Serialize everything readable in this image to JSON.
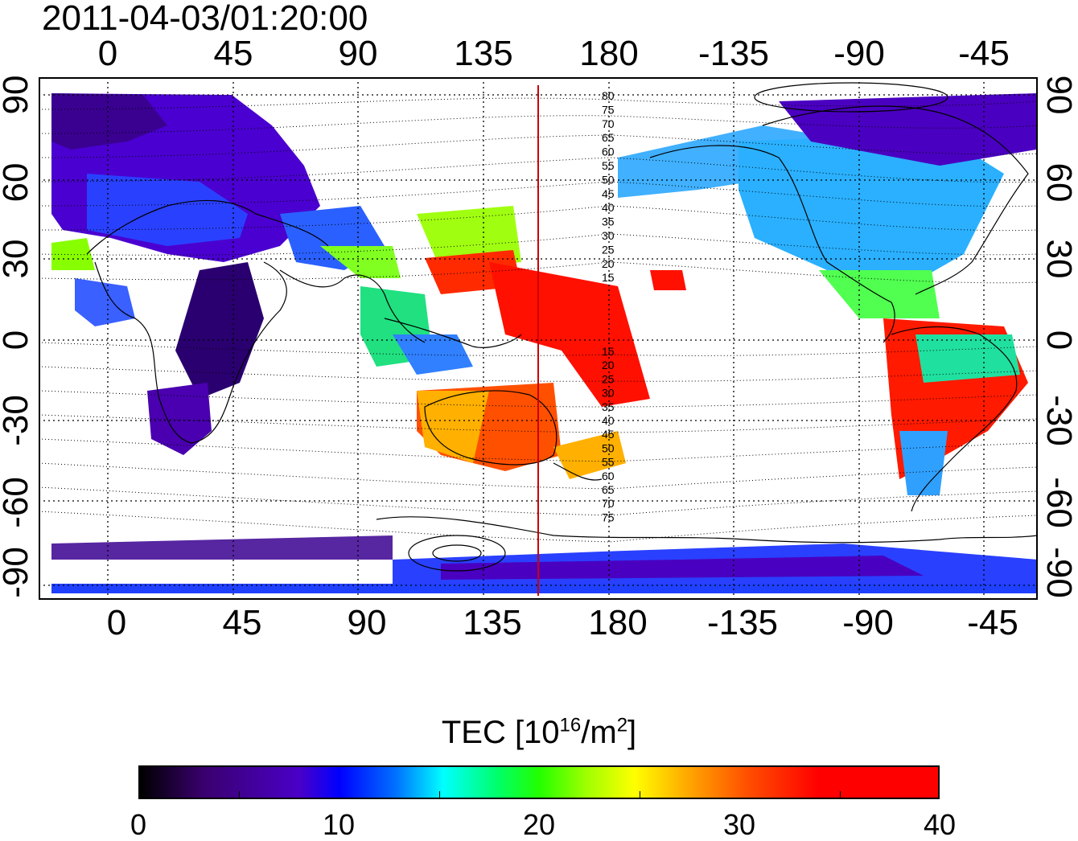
{
  "timestamp": "2011-04-03/01:20:00",
  "axes": {
    "top_lon_ticks": [
      "0",
      "45",
      "90",
      "135",
      "180",
      "-135",
      "-90",
      "-45"
    ],
    "bottom_lon_ticks": [
      "0",
      "45",
      "90",
      "135",
      "180",
      "-135",
      "-90",
      "-45"
    ],
    "left_lat_ticks": [
      "90",
      "60",
      "30",
      "0",
      "-30",
      "-60",
      "-90"
    ],
    "right_lat_ticks": [
      "90",
      "60",
      "30",
      "0",
      "-30",
      "-60",
      "-90"
    ]
  },
  "map": {
    "lon_range": [
      -20,
      340
    ],
    "lat_range": [
      -95,
      95
    ],
    "meridian_marker_lon": 160,
    "marker_color": "#cc0000",
    "contour_labels_north": [
      "80",
      "75",
      "70",
      "65",
      "60",
      "55",
      "50",
      "45",
      "40",
      "35",
      "30",
      "25",
      "20",
      "15"
    ],
    "contour_labels_south": [
      "15",
      "20",
      "25",
      "30",
      "35",
      "40",
      "45",
      "50",
      "55",
      "60",
      "65",
      "70",
      "75"
    ]
  },
  "colorbar": {
    "title_prefix": "TEC  [10",
    "title_exp1": "16",
    "title_mid": "/m",
    "title_exp2": "2",
    "title_suffix": "]",
    "ticks": [
      "0",
      "10",
      "20",
      "30",
      "40"
    ],
    "range": [
      0,
      40
    ]
  }
}
